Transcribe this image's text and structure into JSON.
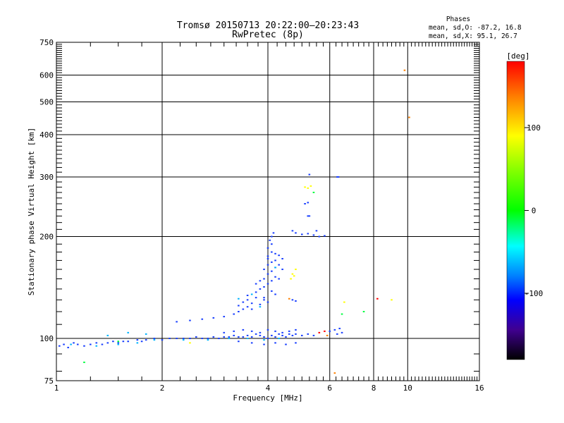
{
  "chart_data": {
    "type": "scatter",
    "title": "Tromsø 20150713 20:22:00–20:23:43",
    "subtitle": "RwPretec (8p)",
    "xlabel": "Frequency [MHz]",
    "ylabel": "Stationary phase Virtual Height [km]",
    "x_scale": "log",
    "y_scale": "log",
    "xlim": [
      1,
      16
    ],
    "ylim": [
      75,
      750
    ],
    "x_ticks": [
      1,
      2,
      4,
      6,
      8,
      10,
      16
    ],
    "y_ticks": [
      75,
      100,
      200,
      300,
      400,
      500,
      600,
      750
    ],
    "grid": true,
    "stats": {
      "heading": "Phases",
      "o_line": "mean, sd,O: -87.2, 16.8",
      "x_line": "mean, sd,X:  95.1, 26.7"
    },
    "colorbar": {
      "unit": "[deg]",
      "range": [
        -180,
        180
      ],
      "ticks": [
        100,
        0,
        -100
      ],
      "colors": [
        "#ff0000",
        "#ff8000",
        "#ffff00",
        "#80ff00",
        "#00ff00",
        "#00ffff",
        "#0080ff",
        "#0000ff",
        "#4000a0",
        "#000000"
      ]
    },
    "series": [
      {
        "color": "#1a40ff",
        "points": [
          [
            1.02,
            95
          ],
          [
            1.05,
            96
          ],
          [
            1.08,
            94
          ],
          [
            1.12,
            97
          ],
          [
            1.15,
            96
          ],
          [
            1.2,
            95
          ],
          [
            1.25,
            96
          ],
          [
            1.3,
            97
          ],
          [
            1.35,
            96
          ],
          [
            1.4,
            97
          ],
          [
            1.45,
            98
          ],
          [
            1.5,
            97
          ],
          [
            1.55,
            98
          ],
          [
            1.6,
            98
          ],
          [
            1.7,
            99
          ],
          [
            1.75,
            98
          ],
          [
            1.8,
            99
          ],
          [
            1.9,
            100
          ],
          [
            2.0,
            99
          ],
          [
            2.1,
            100
          ],
          [
            2.2,
            100
          ],
          [
            2.3,
            100
          ],
          [
            2.4,
            100
          ],
          [
            2.5,
            101
          ],
          [
            2.6,
            100
          ],
          [
            2.7,
            100
          ],
          [
            2.8,
            101
          ],
          [
            2.9,
            100
          ],
          [
            3.0,
            101
          ],
          [
            3.1,
            101
          ],
          [
            3.2,
            102
          ],
          [
            3.3,
            101
          ],
          [
            3.4,
            101
          ],
          [
            3.5,
            102
          ],
          [
            3.6,
            101
          ],
          [
            3.7,
            103
          ],
          [
            3.8,
            102
          ],
          [
            3.9,
            101
          ],
          [
            4.0,
            100
          ],
          [
            4.1,
            102
          ],
          [
            4.2,
            101
          ],
          [
            4.3,
            103
          ],
          [
            4.4,
            102
          ],
          [
            4.5,
            101
          ],
          [
            4.6,
            103
          ],
          [
            4.7,
            102
          ],
          [
            4.8,
            103
          ],
          [
            5.0,
            102
          ],
          [
            5.2,
            103
          ],
          [
            5.4,
            102
          ],
          [
            3.0,
            104
          ],
          [
            3.2,
            105
          ],
          [
            3.4,
            106
          ],
          [
            3.6,
            105
          ],
          [
            3.8,
            104
          ],
          [
            4.0,
            106
          ],
          [
            4.2,
            105
          ],
          [
            4.4,
            104
          ],
          [
            4.6,
            105
          ],
          [
            4.8,
            106
          ],
          [
            3.3,
            98
          ],
          [
            3.6,
            97
          ],
          [
            3.9,
            96
          ],
          [
            4.2,
            97
          ],
          [
            4.5,
            96
          ],
          [
            4.8,
            97
          ],
          [
            2.2,
            112
          ],
          [
            2.4,
            113
          ],
          [
            2.6,
            114
          ],
          [
            2.8,
            115
          ],
          [
            3.0,
            116
          ],
          [
            3.2,
            118
          ],
          [
            3.3,
            120
          ],
          [
            3.3,
            125
          ],
          [
            3.4,
            128
          ],
          [
            3.5,
            130
          ],
          [
            3.6,
            127
          ],
          [
            3.7,
            132
          ],
          [
            3.5,
            124
          ],
          [
            3.6,
            122
          ],
          [
            3.8,
            126
          ],
          [
            3.9,
            130
          ],
          [
            4.0,
            128
          ],
          [
            3.4,
            122
          ],
          [
            3.5,
            134
          ],
          [
            3.7,
            137
          ],
          [
            3.8,
            140
          ],
          [
            3.9,
            142
          ],
          [
            4.0,
            145
          ],
          [
            4.1,
            138
          ],
          [
            4.2,
            135
          ],
          [
            3.9,
            132
          ],
          [
            3.7,
            145
          ],
          [
            3.8,
            148
          ],
          [
            3.9,
            150
          ],
          [
            4.0,
            155
          ],
          [
            4.1,
            158
          ],
          [
            4.2,
            152
          ],
          [
            4.3,
            150
          ],
          [
            4.1,
            148
          ],
          [
            3.9,
            160
          ],
          [
            4.0,
            165
          ],
          [
            4.1,
            168
          ],
          [
            4.2,
            170
          ],
          [
            4.3,
            165
          ],
          [
            4.4,
            160
          ],
          [
            4.0,
            172
          ],
          [
            4.2,
            162
          ],
          [
            4.0,
            175
          ],
          [
            4.1,
            180
          ],
          [
            4.2,
            178
          ],
          [
            4.3,
            176
          ],
          [
            4.4,
            172
          ],
          [
            4.0,
            185
          ],
          [
            4.1,
            190
          ],
          [
            4.05,
            195
          ],
          [
            4.1,
            200
          ],
          [
            4.15,
            205
          ],
          [
            4.7,
            130
          ],
          [
            4.8,
            129
          ],
          [
            4.7,
            208
          ],
          [
            4.8,
            205
          ],
          [
            5.0,
            203
          ],
          [
            5.2,
            204
          ],
          [
            5.4,
            202
          ],
          [
            5.6,
            200
          ],
          [
            5.8,
            201
          ],
          [
            5.5,
            208
          ],
          [
            5.2,
            230
          ],
          [
            5.25,
            230
          ],
          [
            5.1,
            250
          ],
          [
            5.2,
            252
          ],
          [
            5.25,
            305
          ],
          [
            6.3,
            300
          ],
          [
            6.35,
            300
          ],
          [
            6.0,
            105
          ],
          [
            6.2,
            106
          ],
          [
            6.4,
            107
          ],
          [
            6.5,
            104
          ],
          [
            6.3,
            103
          ]
        ]
      },
      {
        "color": "#00b4ff",
        "points": [
          [
            1.1,
            96
          ],
          [
            1.3,
            95
          ],
          [
            1.5,
            96
          ],
          [
            1.7,
            97
          ],
          [
            1.9,
            99
          ],
          [
            2.3,
            99
          ],
          [
            2.7,
            99
          ],
          [
            3.1,
            100
          ],
          [
            3.5,
            100
          ],
          [
            3.9,
            99
          ],
          [
            4.3,
            100
          ],
          [
            1.4,
            102
          ],
          [
            1.6,
            104
          ],
          [
            1.8,
            103
          ],
          [
            3.3,
            131
          ],
          [
            3.6,
            135
          ],
          [
            4.2,
            162
          ],
          [
            3.8,
            124
          ]
        ]
      },
      {
        "color": "#00ff40",
        "points": [
          [
            1.2,
            85
          ],
          [
            5.4,
            270
          ],
          [
            7.5,
            120
          ],
          [
            6.5,
            118
          ],
          [
            1.5,
            98
          ]
        ]
      },
      {
        "color": "#ffff00",
        "points": [
          [
            4.65,
            150
          ],
          [
            4.7,
            155
          ],
          [
            4.75,
            153
          ],
          [
            4.8,
            160
          ],
          [
            5.1,
            280
          ],
          [
            5.2,
            278
          ],
          [
            5.3,
            282
          ],
          [
            9.0,
            130
          ],
          [
            6.6,
            128
          ],
          [
            2.4,
            97
          ]
        ]
      },
      {
        "color": "#ff8000",
        "points": [
          [
            10.1,
            450
          ],
          [
            9.8,
            620
          ],
          [
            5.9,
            102
          ],
          [
            4.6,
            131
          ],
          [
            6.2,
            79
          ]
        ]
      },
      {
        "color": "#ff0000",
        "points": [
          [
            8.2,
            131
          ],
          [
            5.6,
            104
          ],
          [
            5.8,
            105
          ]
        ]
      }
    ]
  }
}
